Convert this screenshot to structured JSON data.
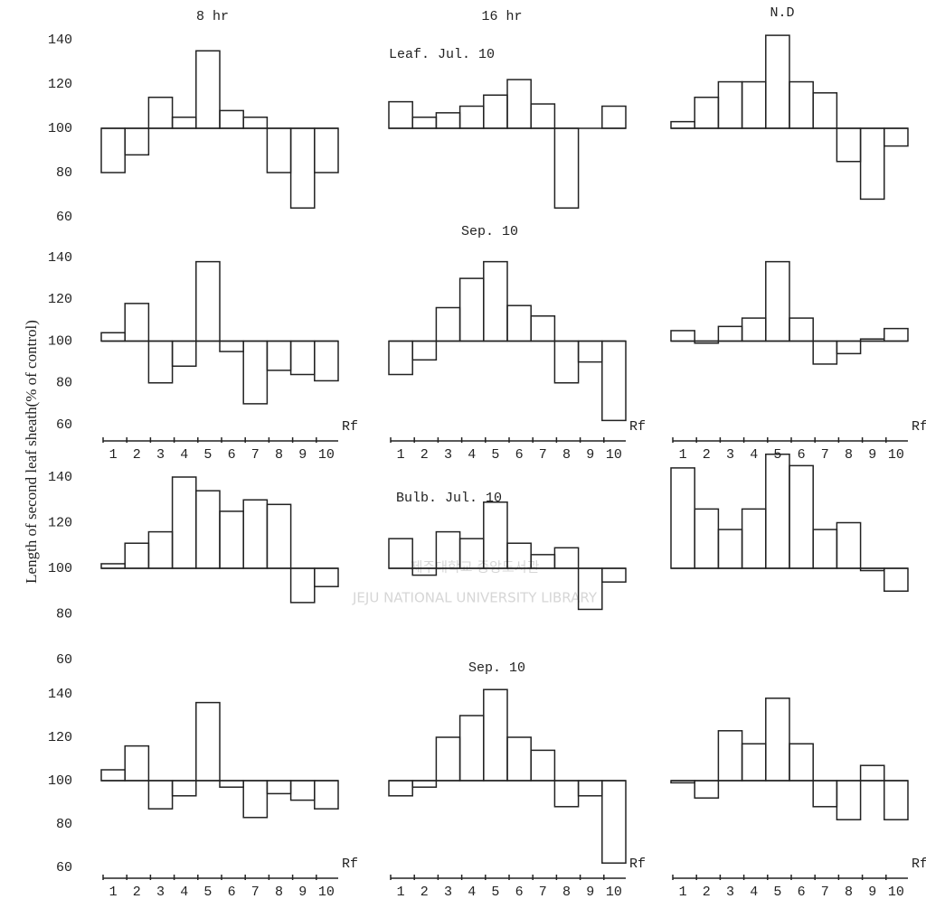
{
  "column_titles": [
    "8 hr",
    "16 hr",
    "N.D"
  ],
  "row_titles": [
    "Leaf. Jul. 10",
    "Sep. 10",
    "Bulb. Jul. 10",
    "Sep. 10"
  ],
  "ylabel": "Length of second leaf sheath(% of control)",
  "watermark": {
    "text": "제주대학교 중앙도서관",
    "subtext": "JEJU NATIONAL UNIVERSITY LIBRARY"
  },
  "chart_data": [
    {
      "type": "step",
      "reference": 100,
      "ylim": [
        60,
        140
      ],
      "yticks": [
        60,
        80,
        100,
        120,
        140
      ],
      "values": [
        80,
        88,
        114,
        105,
        135,
        108,
        105,
        80,
        64,
        80
      ]
    },
    {
      "type": "step",
      "reference": 100,
      "ylim": [
        60,
        140
      ],
      "values": [
        112,
        105,
        107,
        110,
        115,
        122,
        111,
        64,
        100,
        110
      ]
    },
    {
      "type": "step",
      "reference": 100,
      "ylim": [
        60,
        140
      ],
      "values": [
        103,
        114,
        121,
        121,
        142,
        121,
        116,
        85,
        68,
        92
      ]
    },
    {
      "type": "step",
      "reference": 100,
      "ylim": [
        60,
        140
      ],
      "yticks": [
        60,
        80,
        100,
        120,
        140
      ],
      "x_label": "Rf",
      "categories": [
        "1",
        "2",
        "3",
        "4",
        "5",
        "6",
        "7",
        "8",
        "9",
        "10"
      ],
      "values": [
        104,
        118,
        80,
        88,
        138,
        95,
        70,
        86,
        84,
        81
      ]
    },
    {
      "type": "step",
      "reference": 100,
      "ylim": [
        60,
        140
      ],
      "x_label": "Rf",
      "categories": [
        "1",
        "2",
        "3",
        "4",
        "5",
        "6",
        "7",
        "8",
        "9",
        "10"
      ],
      "values": [
        84,
        91,
        116,
        130,
        138,
        117,
        112,
        80,
        90,
        62
      ]
    },
    {
      "type": "step",
      "reference": 100,
      "ylim": [
        60,
        140
      ],
      "x_label": "Rf",
      "categories": [
        "1",
        "2",
        "3",
        "4",
        "5",
        "6",
        "7",
        "8",
        "9",
        "10"
      ],
      "values": [
        105,
        99,
        107,
        111,
        138,
        111,
        89,
        94,
        101,
        106
      ]
    },
    {
      "type": "step",
      "reference": 100,
      "ylim": [
        60,
        140
      ],
      "yticks": [
        60,
        80,
        100,
        120,
        140
      ],
      "values": [
        102,
        111,
        116,
        140,
        134,
        125,
        130,
        128,
        85,
        92
      ]
    },
    {
      "type": "step",
      "reference": 100,
      "ylim": [
        60,
        140
      ],
      "values": [
        113,
        97,
        116,
        113,
        129,
        111,
        106,
        109,
        82,
        94
      ]
    },
    {
      "type": "step",
      "reference": 100,
      "ylim": [
        60,
        140
      ],
      "values": [
        144,
        126,
        117,
        126,
        150,
        145,
        117,
        120,
        99,
        90
      ]
    },
    {
      "type": "step",
      "reference": 100,
      "ylim": [
        60,
        140
      ],
      "yticks": [
        60,
        80,
        100,
        120,
        140
      ],
      "x_label": "Rf",
      "categories": [
        "1",
        "2",
        "3",
        "4",
        "5",
        "6",
        "7",
        "8",
        "9",
        "10"
      ],
      "values": [
        105,
        116,
        87,
        93,
        136,
        97,
        83,
        94,
        91,
        87
      ]
    },
    {
      "type": "step",
      "reference": 100,
      "ylim": [
        60,
        140
      ],
      "x_label": "Rf",
      "categories": [
        "1",
        "2",
        "3",
        "4",
        "5",
        "6",
        "7",
        "8",
        "9",
        "10"
      ],
      "values": [
        93,
        97,
        120,
        130,
        142,
        120,
        114,
        88,
        93,
        62
      ]
    },
    {
      "type": "step",
      "reference": 100,
      "ylim": [
        60,
        140
      ],
      "x_label": "Rf",
      "categories": [
        "1",
        "2",
        "3",
        "4",
        "5",
        "6",
        "7",
        "8",
        "9",
        "10"
      ],
      "values": [
        99,
        92,
        123,
        117,
        138,
        117,
        88,
        82,
        107,
        82
      ]
    }
  ]
}
